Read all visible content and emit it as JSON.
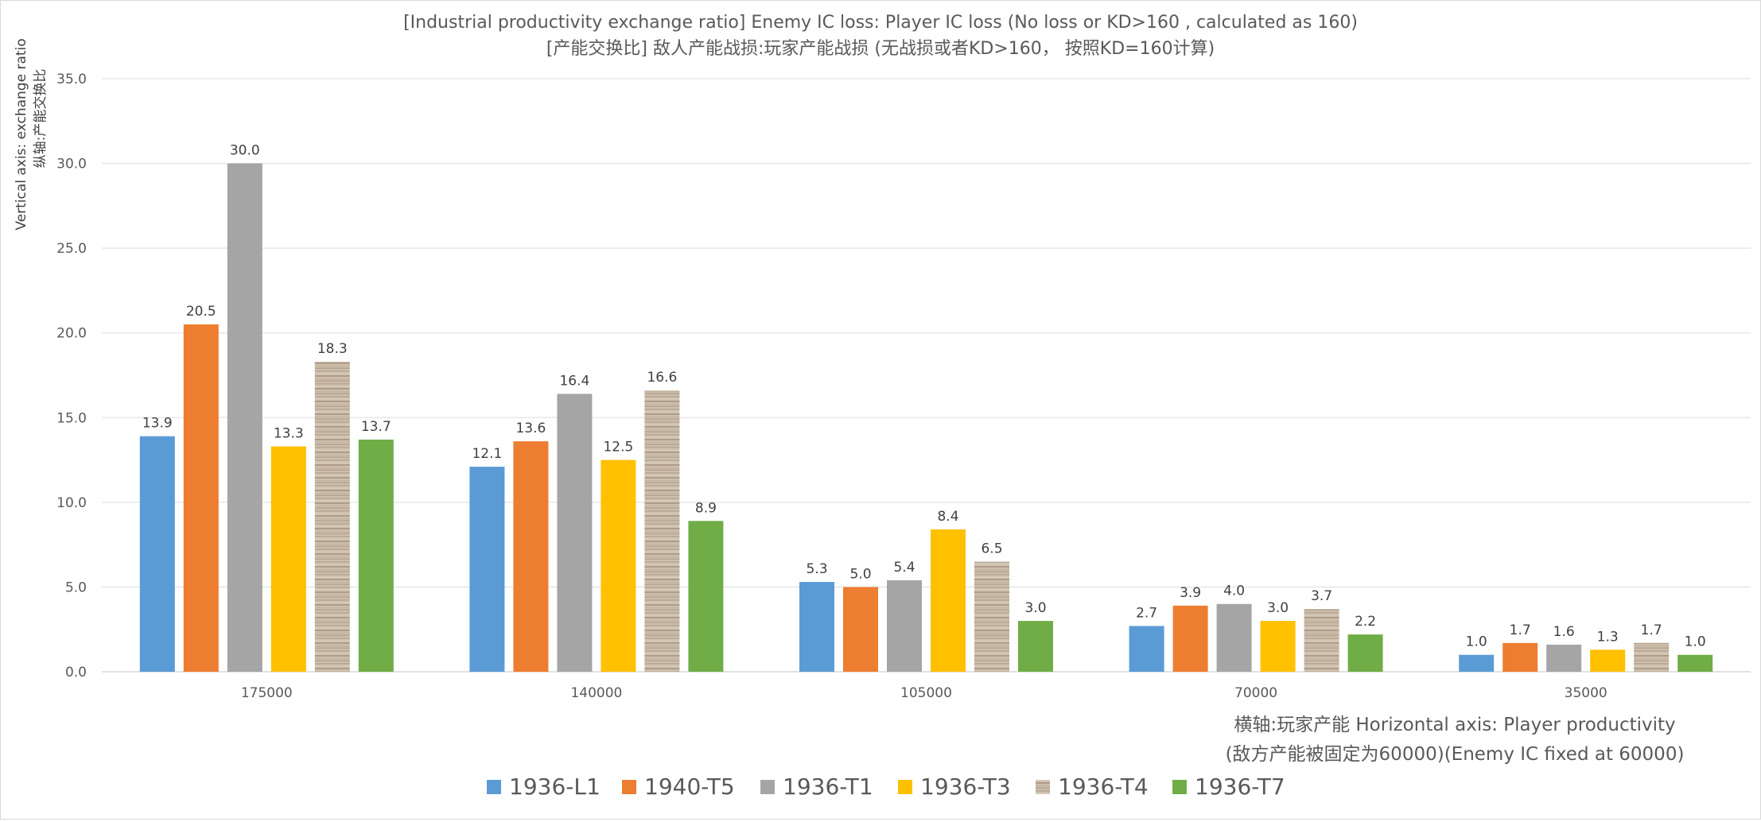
{
  "chart_data": {
    "type": "bar",
    "title": [
      "[Industrial productivity exchange ratio] Enemy IC loss: Player IC loss (No loss or KD>160 , calculated as 160)",
      "[产能交换比] 敌人产能战损:玩家产能战损 (无战损或者KD>160， 按照KD=160计算)"
    ],
    "ylabel": [
      "Vertical axis:  exchange ratio",
      "纵轴:产能交换比"
    ],
    "xlabel": [
      "横轴:玩家产能 Horizontal axis: Player productivity",
      "(敌方产能被固定为60000)(Enemy IC fixed at 60000)"
    ],
    "categories": [
      "175000",
      "140000",
      "105000",
      "70000",
      "35000"
    ],
    "ylim": [
      0,
      35
    ],
    "yticks": [
      0,
      5,
      10,
      15,
      20,
      25,
      30,
      35
    ],
    "ytick_labels": [
      "0.0",
      "5.0",
      "10.0",
      "15.0",
      "20.0",
      "25.0",
      "30.0",
      "35.0"
    ],
    "grid": true,
    "legend_position": "bottom",
    "series": [
      {
        "name": "1936-L1",
        "color": "#5b9bd5",
        "values": [
          13.9,
          12.1,
          5.3,
          2.7,
          1.0
        ],
        "labels": [
          "13.9",
          "12.1",
          "5.3",
          "2.7",
          "1.0"
        ]
      },
      {
        "name": "1940-T5",
        "color": "#ed7d31",
        "values": [
          20.5,
          13.6,
          5.0,
          3.9,
          1.7
        ],
        "labels": [
          "20.5",
          "13.6",
          "5.0",
          "3.9",
          "1.7"
        ]
      },
      {
        "name": "1936-T1",
        "color": "#a5a5a5",
        "values": [
          30.0,
          16.4,
          5.4,
          4.0,
          1.6
        ],
        "labels": [
          "30.0",
          "16.4",
          "5.4",
          "4.0",
          "1.6"
        ]
      },
      {
        "name": "1936-T3",
        "color": "#ffc000",
        "values": [
          13.3,
          12.5,
          8.4,
          3.0,
          1.3
        ],
        "labels": [
          "13.3",
          "12.5",
          "8.4",
          "3.0",
          "1.3"
        ]
      },
      {
        "name": "1936-T4",
        "color": "#c9b8a6",
        "pattern": "wood",
        "values": [
          18.3,
          16.6,
          6.5,
          3.7,
          1.7
        ],
        "labels": [
          "18.3",
          "16.6",
          "6.5",
          "3.7",
          "1.7"
        ]
      },
      {
        "name": "1936-T7",
        "color": "#70ad47",
        "values": [
          13.7,
          8.9,
          3.0,
          2.2,
          1.0
        ],
        "labels": [
          "13.7",
          "8.9",
          "3.0",
          "2.2",
          "1.0"
        ]
      }
    ]
  }
}
